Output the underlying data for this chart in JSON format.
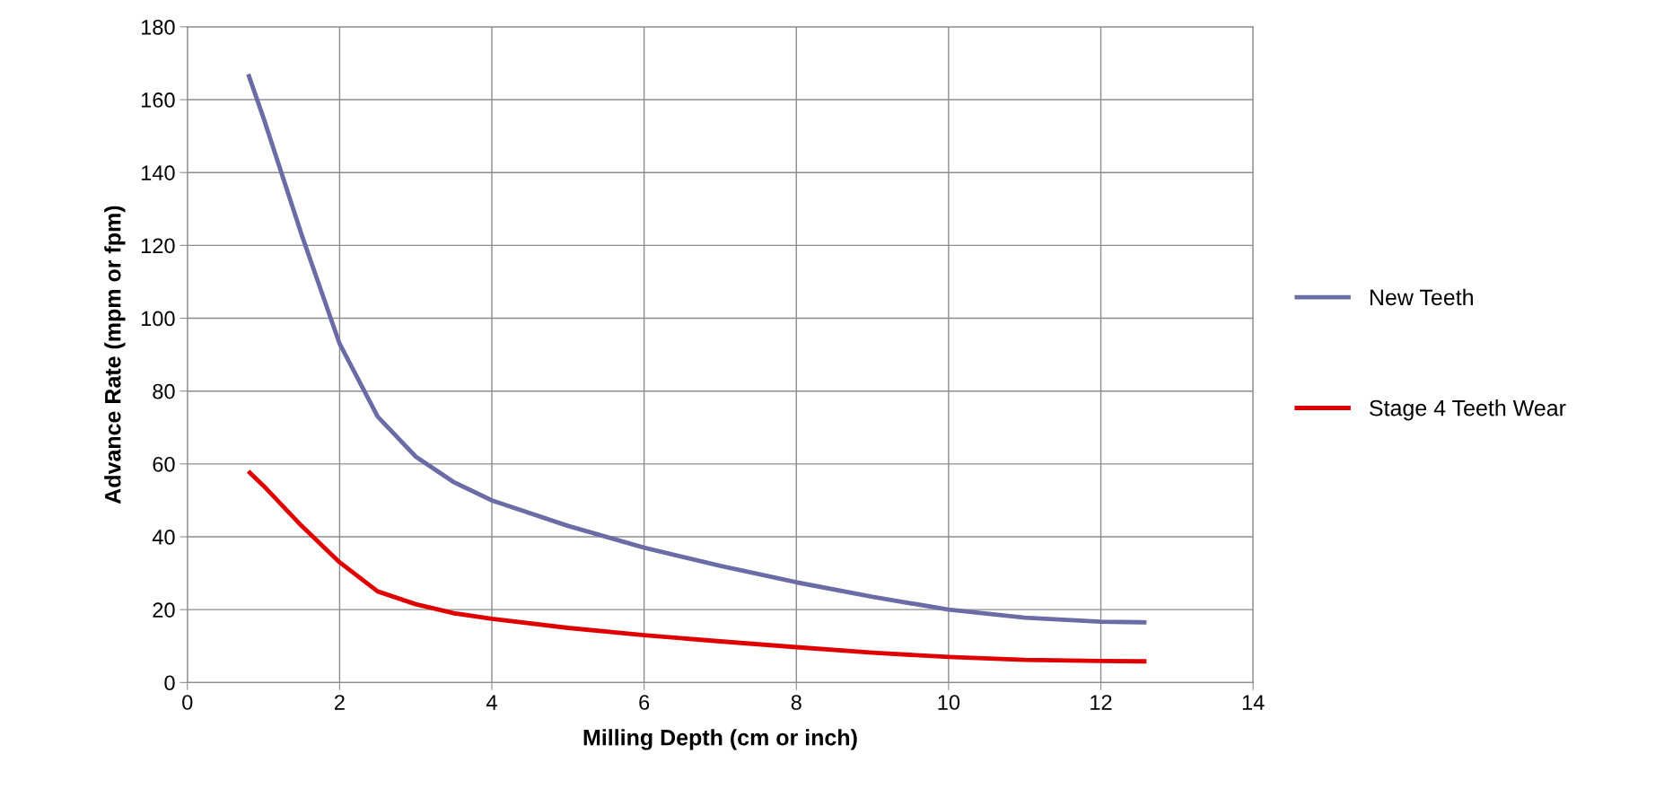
{
  "chart_data": {
    "type": "line",
    "xlabel": "Milling Depth (cm or inch)",
    "ylabel": "Advance Rate (mpm or fpm)",
    "x": [
      0.8,
      1,
      1.5,
      2,
      2.5,
      3,
      3.5,
      4,
      5,
      6,
      7,
      8,
      9,
      10,
      11,
      12,
      12.6
    ],
    "series": [
      {
        "name": "New Teeth",
        "color": "#6b6ba6",
        "values": [
          167,
          155,
          123,
          93,
          73,
          62,
          55,
          50,
          43,
          37,
          32,
          27.5,
          23.5,
          20,
          17.8,
          16.7,
          16.5
        ]
      },
      {
        "name": "Stage 4 Teeth Wear",
        "color": "#e00000",
        "values": [
          58,
          54,
          43,
          33,
          25,
          21.5,
          19,
          17.5,
          15,
          13,
          11.3,
          9.7,
          8.2,
          7,
          6.2,
          5.9,
          5.8
        ]
      }
    ],
    "xlim": [
      0,
      14
    ],
    "xticks": [
      0,
      2,
      4,
      6,
      8,
      10,
      12,
      14
    ],
    "ylim": [
      0,
      180
    ],
    "yticks": [
      0,
      20,
      40,
      60,
      80,
      100,
      120,
      140,
      160,
      180
    ],
    "grid": true,
    "legend": "right",
    "marker": "none",
    "line_style": "solid"
  }
}
